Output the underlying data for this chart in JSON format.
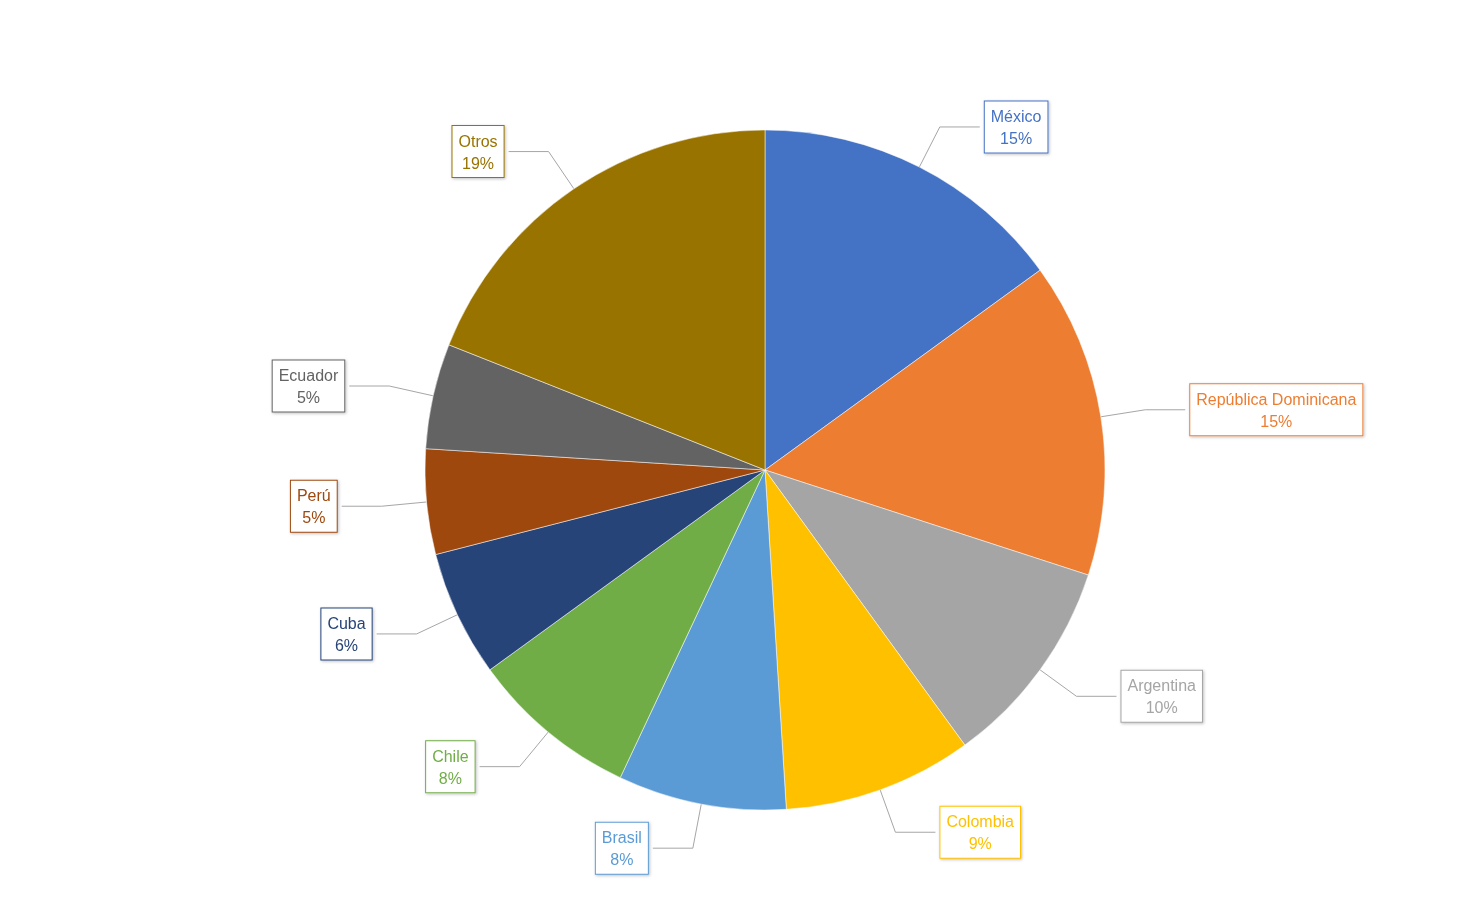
{
  "chart_data": {
    "type": "pie",
    "categories": [
      "México",
      "República Dominicana",
      "Argentina",
      "Colombia",
      "Brasil",
      "Chile",
      "Cuba",
      "Perú",
      "Ecuador",
      "Otros"
    ],
    "values": [
      15,
      15,
      10,
      9,
      8,
      8,
      6,
      5,
      5,
      19
    ],
    "value_labels": [
      "15%",
      "15%",
      "10%",
      "9%",
      "8%",
      "8%",
      "6%",
      "5%",
      "5%",
      "19%"
    ],
    "colors": [
      "#4472c4",
      "#ed7d31",
      "#a5a5a5",
      "#ffc000",
      "#5b9bd5",
      "#70ad47",
      "#264478",
      "#9e480e",
      "#636363",
      "#997300"
    ]
  }
}
